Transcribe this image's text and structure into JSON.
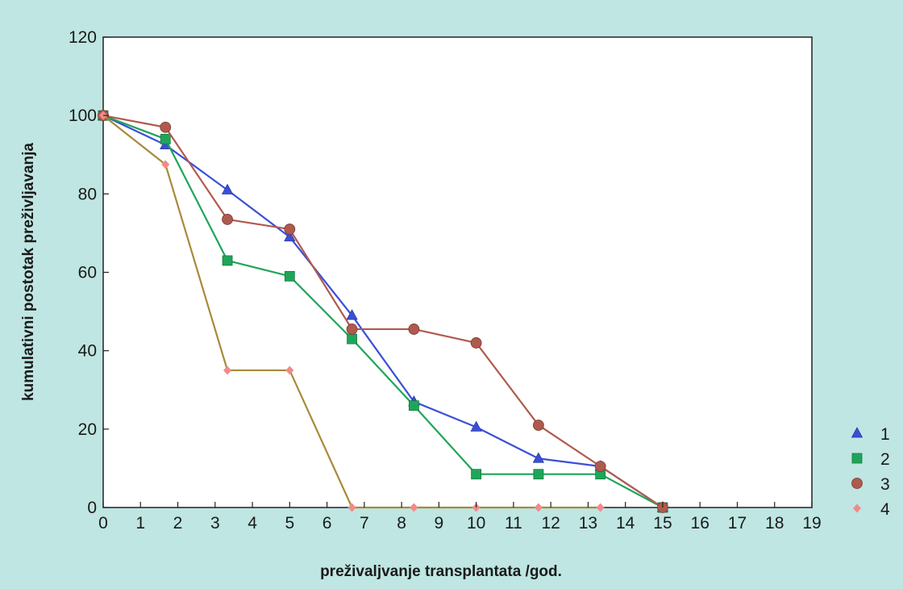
{
  "colors": {
    "background": "#bfe6e2",
    "plot_background": "#ffffff",
    "axis": "#222222"
  },
  "chart_data": {
    "type": "line",
    "title": "",
    "xlabel": "preživaljvanje transplantata /god.",
    "ylabel": "kumulativni postotak preživljavanja",
    "xlim": [
      0,
      19
    ],
    "ylim": [
      0,
      120
    ],
    "x_ticks": [
      0,
      1,
      2,
      3,
      4,
      5,
      6,
      7,
      8,
      9,
      10,
      11,
      12,
      13,
      14,
      15,
      16,
      17,
      18,
      19
    ],
    "y_ticks": [
      0,
      20,
      40,
      60,
      80,
      100,
      120
    ],
    "grid": false,
    "legend_position": "bottom-right, outside plot",
    "series": [
      {
        "name": "1",
        "marker": "triangle",
        "color": "#3b4fd6",
        "x": [
          0,
          1.67,
          3.33,
          5.0,
          6.67,
          8.33,
          10.0,
          11.67,
          13.33,
          15.0
        ],
        "y": [
          100,
          92.5,
          81,
          69,
          49,
          27,
          20.5,
          12.5,
          10.5,
          0
        ]
      },
      {
        "name": "2",
        "marker": "square",
        "color": "#1fa55a",
        "x": [
          0,
          1.67,
          3.33,
          5.0,
          6.67,
          8.33,
          10.0,
          11.67,
          13.33,
          15.0
        ],
        "y": [
          100,
          94,
          63,
          59,
          43,
          26,
          8.5,
          8.5,
          8.5,
          0
        ]
      },
      {
        "name": "3",
        "marker": "circle",
        "color": "#b05a4e",
        "x": [
          0,
          1.67,
          3.33,
          5.0,
          6.67,
          8.33,
          10.0,
          11.67,
          13.33,
          15.0
        ],
        "y": [
          100,
          97,
          73.5,
          71,
          45.5,
          45.5,
          42,
          21,
          10.5,
          0
        ]
      },
      {
        "name": "4",
        "marker": "diamond",
        "color": "#f28a8a",
        "line_color": "#a88a3a",
        "x": [
          0,
          1.67,
          3.33,
          5.0,
          6.67,
          8.33,
          10.0,
          11.67,
          13.33
        ],
        "y": [
          100,
          87.5,
          35,
          35,
          0,
          0,
          0,
          0,
          0
        ]
      }
    ]
  }
}
